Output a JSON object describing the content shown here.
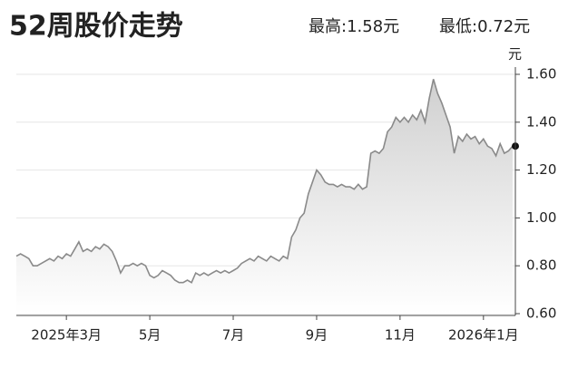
{
  "chart_data": {
    "type": "line",
    "title": "52周股价走势",
    "high_label": "最高:1.58元",
    "low_label": "最低:0.72元",
    "y_unit": "元",
    "categories": [
      null,
      null,
      null,
      null,
      null,
      null,
      null,
      null,
      null,
      null,
      null,
      null,
      "2025年3月",
      null,
      null,
      null,
      null,
      null,
      null,
      null,
      null,
      null,
      null,
      null,
      null,
      null,
      null,
      null,
      null,
      null,
      null,
      null,
      "5月",
      null,
      null,
      null,
      null,
      null,
      null,
      null,
      null,
      null,
      null,
      null,
      null,
      null,
      null,
      null,
      null,
      null,
      null,
      null,
      "7月",
      null,
      null,
      null,
      null,
      null,
      null,
      null,
      null,
      null,
      null,
      null,
      null,
      null,
      null,
      null,
      null,
      null,
      null,
      null,
      "9月",
      null,
      null,
      null,
      null,
      null,
      null,
      null,
      null,
      null,
      null,
      null,
      null,
      null,
      null,
      null,
      null,
      null,
      null,
      null,
      "11月",
      null,
      null,
      null,
      null,
      null,
      null,
      null,
      null,
      null,
      null,
      null,
      null,
      null,
      null,
      null,
      null,
      null,
      null,
      null,
      "2026年1月",
      null,
      null,
      null,
      null,
      null,
      null,
      null
    ],
    "values": [
      0.84,
      0.85,
      0.84,
      0.83,
      0.8,
      0.8,
      0.81,
      0.82,
      0.83,
      0.82,
      0.84,
      0.83,
      0.85,
      0.84,
      0.87,
      0.9,
      0.86,
      0.87,
      0.86,
      0.88,
      0.87,
      0.89,
      0.88,
      0.86,
      0.82,
      0.77,
      0.8,
      0.8,
      0.81,
      0.8,
      0.81,
      0.8,
      0.76,
      0.75,
      0.76,
      0.78,
      0.77,
      0.76,
      0.74,
      0.73,
      0.73,
      0.74,
      0.73,
      0.77,
      0.76,
      0.77,
      0.76,
      0.77,
      0.78,
      0.77,
      0.78,
      0.77,
      0.78,
      0.79,
      0.81,
      0.82,
      0.83,
      0.82,
      0.84,
      0.83,
      0.82,
      0.84,
      0.83,
      0.82,
      0.84,
      0.83,
      0.92,
      0.95,
      1.0,
      1.02,
      1.1,
      1.15,
      1.2,
      1.18,
      1.15,
      1.14,
      1.14,
      1.13,
      1.14,
      1.13,
      1.13,
      1.12,
      1.14,
      1.12,
      1.13,
      1.27,
      1.28,
      1.27,
      1.29,
      1.36,
      1.38,
      1.42,
      1.4,
      1.42,
      1.4,
      1.43,
      1.41,
      1.45,
      1.4,
      1.5,
      1.58,
      1.52,
      1.48,
      1.43,
      1.38,
      1.27,
      1.34,
      1.32,
      1.35,
      1.33,
      1.34,
      1.31,
      1.33,
      1.3,
      1.29,
      1.26,
      1.31,
      1.27,
      1.28,
      1.3
    ],
    "color": "#8a8a8a",
    "ylim": [
      0.6,
      1.6
    ],
    "yticks": [
      {
        "value": 0.6,
        "label": "0.60"
      },
      {
        "value": 0.8,
        "label": "0.80"
      },
      {
        "value": 1.0,
        "label": "1.00"
      },
      {
        "value": 1.2,
        "label": "1.20"
      },
      {
        "value": 1.4,
        "label": "1.40"
      },
      {
        "value": 1.6,
        "label": "1.60"
      }
    ],
    "grid": true
  }
}
